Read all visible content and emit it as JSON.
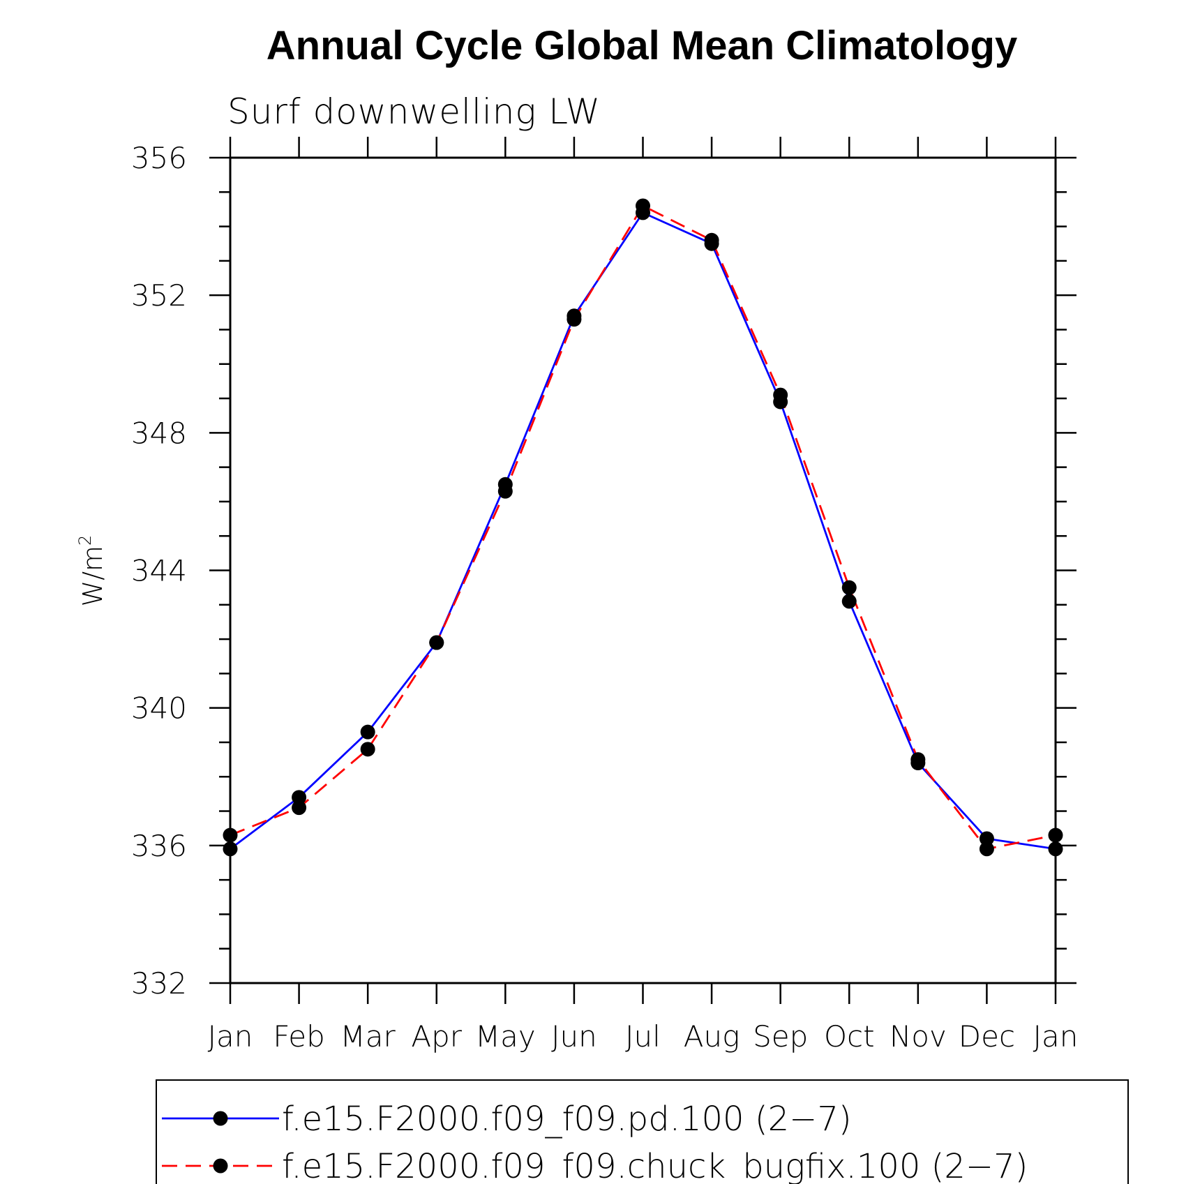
{
  "chart_data": {
    "type": "line",
    "title": "Annual Cycle Global Mean Climatology",
    "subtitle": "Surf downwelling LW",
    "ylabel_base": "W/m",
    "ylabel_sup": "2",
    "xlabel": "",
    "categories": [
      "Jan",
      "Feb",
      "Mar",
      "Apr",
      "May",
      "Jun",
      "Jul",
      "Aug",
      "Sep",
      "Oct",
      "Nov",
      "Dec",
      "Jan"
    ],
    "ylim": [
      332,
      356
    ],
    "yticks": [
      "332",
      "336",
      "340",
      "344",
      "348",
      "352",
      "356"
    ],
    "grid": false,
    "legend_position": "bottom",
    "series": [
      {
        "name": "f.e15.F2000.f09_f09.pd.100 (2−7)",
        "color": "#0000ff",
        "dash": "solid",
        "marker": "filled-circle",
        "values": [
          335.9,
          337.4,
          339.3,
          341.9,
          346.5,
          351.4,
          354.4,
          353.5,
          348.9,
          343.1,
          338.4,
          336.2,
          335.9
        ]
      },
      {
        "name": "f.e15.F2000.f09_f09.chuck_bugfix.100 (2−7)",
        "color": "#ff0000",
        "dash": "dashed",
        "marker": "filled-circle",
        "values": [
          336.3,
          337.1,
          338.8,
          341.9,
          346.3,
          351.3,
          354.6,
          353.6,
          349.1,
          343.5,
          338.5,
          335.9,
          336.3
        ]
      }
    ]
  }
}
